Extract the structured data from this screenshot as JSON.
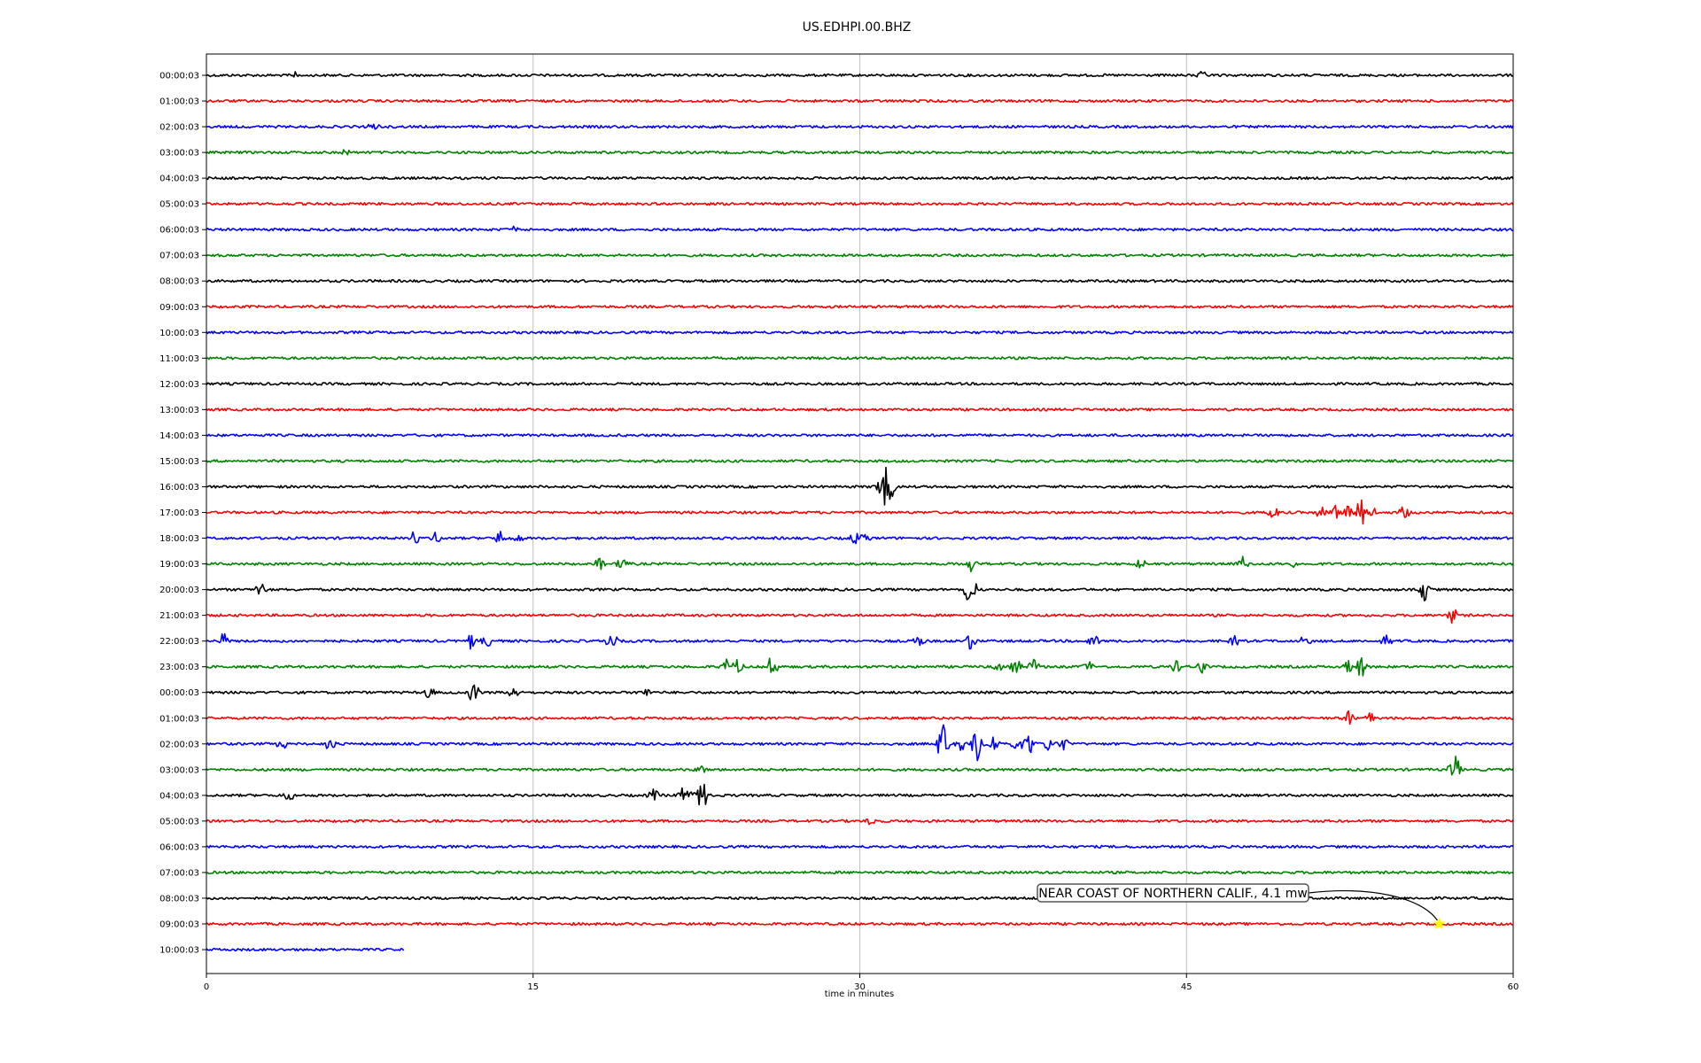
{
  "chart_data": {
    "type": "line",
    "title": "US.EDHPI.00.BHZ",
    "xlabel": "time in minutes",
    "ylabel": "",
    "xlim": [
      0,
      60
    ],
    "x_ticks": [
      "0",
      "15",
      "30",
      "45",
      "60"
    ],
    "grid": "vertical",
    "trace_colors": [
      "#000000",
      "#ff0000",
      "#0000ff",
      "#008000"
    ],
    "traces": [
      {
        "label": "00:00:03",
        "events": [
          {
            "t": 4.1,
            "amp": 5
          },
          {
            "t": 45.7,
            "amp": 4
          }
        ]
      },
      {
        "label": "01:00:03",
        "events": []
      },
      {
        "label": "02:00:03",
        "events": [
          {
            "t": 7.7,
            "amp": 6
          }
        ]
      },
      {
        "label": "03:00:03",
        "events": [
          {
            "t": 6.4,
            "amp": 5
          }
        ]
      },
      {
        "label": "04:00:03",
        "events": []
      },
      {
        "label": "05:00:03",
        "events": []
      },
      {
        "label": "06:00:03",
        "events": [
          {
            "t": 14.1,
            "amp": 4
          }
        ]
      },
      {
        "label": "07:00:03",
        "events": []
      },
      {
        "label": "08:00:03",
        "events": []
      },
      {
        "label": "09:00:03",
        "events": []
      },
      {
        "label": "10:00:03",
        "events": []
      },
      {
        "label": "11:00:03",
        "events": []
      },
      {
        "label": "12:00:03",
        "events": []
      },
      {
        "label": "13:00:03",
        "events": []
      },
      {
        "label": "14:00:03",
        "events": []
      },
      {
        "label": "15:00:03",
        "events": []
      },
      {
        "label": "16:00:03",
        "events": [
          {
            "t": 30.9,
            "amp": 12
          },
          {
            "t": 31.2,
            "amp": 30
          },
          {
            "t": 31.5,
            "amp": 10
          }
        ]
      },
      {
        "label": "17:00:03",
        "events": [
          {
            "t": 49.0,
            "amp": 14
          },
          {
            "t": 51.2,
            "amp": 8
          },
          {
            "t": 51.8,
            "amp": 10
          },
          {
            "t": 52.4,
            "amp": 8
          },
          {
            "t": 53.0,
            "amp": 24
          },
          {
            "t": 53.6,
            "amp": 8
          },
          {
            "t": 55.0,
            "amp": 8
          }
        ]
      },
      {
        "label": "18:00:03",
        "events": [
          {
            "t": 9.5,
            "amp": 8
          },
          {
            "t": 10.5,
            "amp": 8
          },
          {
            "t": 13.5,
            "amp": 9
          },
          {
            "t": 14.3,
            "amp": 8
          },
          {
            "t": 29.8,
            "amp": 8
          },
          {
            "t": 30.3,
            "amp": 6
          }
        ]
      },
      {
        "label": "19:00:03",
        "events": [
          {
            "t": 18.1,
            "amp": 9
          },
          {
            "t": 19.1,
            "amp": 11
          },
          {
            "t": 35.1,
            "amp": 9
          },
          {
            "t": 42.9,
            "amp": 7
          },
          {
            "t": 47.6,
            "amp": 12
          },
          {
            "t": 49.9,
            "amp": 6
          }
        ]
      },
      {
        "label": "20:00:03",
        "events": [
          {
            "t": 2.5,
            "amp": 10
          },
          {
            "t": 35.0,
            "amp": 16
          },
          {
            "t": 35.3,
            "amp": 10
          },
          {
            "t": 55.9,
            "amp": 14
          }
        ]
      },
      {
        "label": "21:00:03",
        "events": [
          {
            "t": 57.2,
            "amp": 10
          }
        ]
      },
      {
        "label": "22:00:03",
        "events": [
          {
            "t": 0.8,
            "amp": 9
          },
          {
            "t": 12.1,
            "amp": 10
          },
          {
            "t": 12.9,
            "amp": 8
          },
          {
            "t": 18.6,
            "amp": 11
          },
          {
            "t": 32.7,
            "amp": 8
          },
          {
            "t": 35.1,
            "amp": 12
          },
          {
            "t": 40.7,
            "amp": 12
          },
          {
            "t": 47.2,
            "amp": 7
          },
          {
            "t": 50.5,
            "amp": 8
          },
          {
            "t": 54.2,
            "amp": 6
          }
        ]
      },
      {
        "label": "23:00:03",
        "events": [
          {
            "t": 23.9,
            "amp": 10
          },
          {
            "t": 24.4,
            "amp": 8
          },
          {
            "t": 26.0,
            "amp": 16
          },
          {
            "t": 36.3,
            "amp": 8
          },
          {
            "t": 37.2,
            "amp": 9
          },
          {
            "t": 38.0,
            "amp": 9
          },
          {
            "t": 40.5,
            "amp": 8
          },
          {
            "t": 44.5,
            "amp": 9
          },
          {
            "t": 45.7,
            "amp": 8
          },
          {
            "t": 52.4,
            "amp": 10
          },
          {
            "t": 53.0,
            "amp": 18
          }
        ]
      },
      {
        "label": "00:00:03",
        "events": [
          {
            "t": 10.2,
            "amp": 8
          },
          {
            "t": 12.3,
            "amp": 16
          },
          {
            "t": 14.1,
            "amp": 8
          },
          {
            "t": 20.2,
            "amp": 8
          }
        ]
      },
      {
        "label": "01:00:03",
        "events": [
          {
            "t": 52.4,
            "amp": 10
          },
          {
            "t": 53.4,
            "amp": 8
          }
        ]
      },
      {
        "label": "02:00:03",
        "events": [
          {
            "t": 3.5,
            "amp": 8
          },
          {
            "t": 5.7,
            "amp": 9
          },
          {
            "t": 33.8,
            "amp": 28
          },
          {
            "t": 34.6,
            "amp": 12
          },
          {
            "t": 35.4,
            "amp": 30
          },
          {
            "t": 36.1,
            "amp": 14
          },
          {
            "t": 37.2,
            "amp": 12
          },
          {
            "t": 37.8,
            "amp": 14
          },
          {
            "t": 38.6,
            "amp": 10
          },
          {
            "t": 39.3,
            "amp": 10
          }
        ]
      },
      {
        "label": "03:00:03",
        "events": [
          {
            "t": 22.7,
            "amp": 6
          },
          {
            "t": 57.3,
            "amp": 22
          }
        ]
      },
      {
        "label": "04:00:03",
        "events": [
          {
            "t": 3.8,
            "amp": 7
          },
          {
            "t": 20.5,
            "amp": 8
          },
          {
            "t": 21.9,
            "amp": 10
          },
          {
            "t": 22.5,
            "amp": 20
          },
          {
            "t": 22.9,
            "amp": 14
          }
        ]
      },
      {
        "label": "05:00:03",
        "events": [
          {
            "t": 30.5,
            "amp": 5
          }
        ]
      },
      {
        "label": "06:00:03",
        "events": []
      },
      {
        "label": "07:00:03",
        "events": []
      },
      {
        "label": "08:00:03",
        "events": []
      },
      {
        "label": "09:00:03",
        "events": []
      },
      {
        "label": "10:00:03",
        "events": [],
        "end_t": 9.1
      }
    ],
    "annotation": {
      "text": "NEAR COAST OF NORTHERN CALIF., 4.1 mw",
      "trace_index": 33,
      "t": 56.6,
      "marker": "star",
      "marker_color": "#ffff00"
    }
  }
}
